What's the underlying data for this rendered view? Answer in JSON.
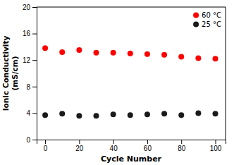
{
  "chart_data": {
    "type": "scatter",
    "xlabel": "Cycle Number",
    "ylabel": "Ionic Conductivity\n(mS/cm)",
    "series": [
      {
        "name": "60 °C",
        "color": "#FF0000",
        "x": [
          0,
          10,
          20,
          30,
          40,
          50,
          60,
          70,
          80,
          90,
          100
        ],
        "values": [
          13.8,
          13.2,
          13.5,
          13.1,
          13.1,
          13.0,
          12.9,
          12.8,
          12.5,
          12.3,
          12.2
        ]
      },
      {
        "name": "25 °C",
        "color": "#1a1a1a",
        "x": [
          0,
          10,
          20,
          30,
          40,
          50,
          60,
          70,
          80,
          90,
          100
        ],
        "values": [
          3.7,
          3.9,
          3.6,
          3.6,
          3.8,
          3.7,
          3.8,
          3.9,
          3.7,
          4.0,
          3.9
        ]
      }
    ],
    "xlim": [
      -5,
      106
    ],
    "ylim": [
      0,
      20
    ],
    "xticks": [
      0,
      20,
      40,
      60,
      80,
      100
    ],
    "yticks": [
      0,
      4,
      8,
      12,
      16,
      20
    ],
    "legend": "upper right"
  }
}
